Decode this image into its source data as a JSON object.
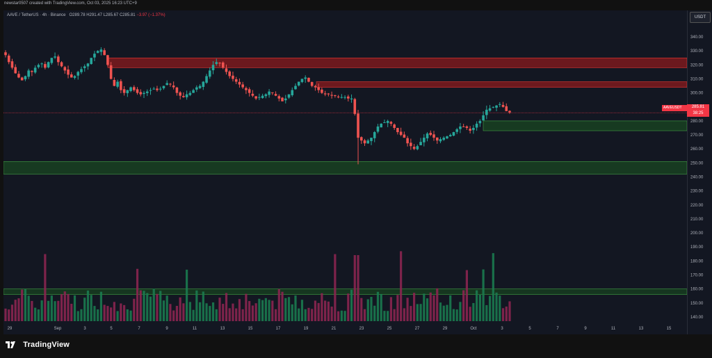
{
  "header": {
    "credit": "newstar0507 created with TradingView.com, Oct 03, 2025 16:23 UTC+9",
    "symbol_line": "AAVE / TetherUS · 4h · Binance",
    "ohlc": {
      "open": "O289.78",
      "high": "H291.47",
      "low": "L285.67",
      "close": "C285.81",
      "change": "−3.97 (−1.37%)"
    }
  },
  "axis": {
    "currency_button": "USDT",
    "price_ticks": [
      "340.00",
      "330.00",
      "320.00",
      "310.00",
      "300.00",
      "290.00",
      "280.00",
      "270.00",
      "260.00",
      "250.00",
      "240.00",
      "230.00",
      "220.00",
      "210.00",
      "200.00",
      "190.00",
      "180.00",
      "170.00",
      "160.00",
      "150.00",
      "140.00"
    ],
    "date_ticks": [
      "29",
      "Sep",
      "3",
      "5",
      "7",
      "9",
      "11",
      "13",
      "15",
      "17",
      "19",
      "21",
      "23",
      "25",
      "27",
      "29",
      "Oct",
      "3",
      "5",
      "7",
      "9",
      "11",
      "13",
      "15"
    ]
  },
  "price_tag": {
    "symbol": "AAVEUSDT",
    "price": "285.81",
    "countdown": "38:25"
  },
  "footer": {
    "brand": "TradingView"
  },
  "colors": {
    "up": "#26a69a",
    "down": "#ef5350",
    "resistance": "#b71c1c",
    "support": "#1b5e20",
    "bg": "#131722"
  },
  "chart_data": {
    "type": "candlestick",
    "title": "AAVE / TetherUS · 4h · Binance",
    "ylim": [
      137,
      345
    ],
    "grid": false,
    "date_range": [
      "Aug 29",
      "Oct 3"
    ],
    "closes": [
      327,
      322,
      318,
      314,
      311,
      309,
      312,
      316,
      315,
      318,
      320,
      321,
      318,
      322,
      325,
      326,
      322,
      319,
      316,
      313,
      311,
      312,
      315,
      317,
      319,
      321,
      325,
      328,
      330,
      331,
      327,
      320,
      310,
      305,
      308,
      302,
      300,
      302,
      304,
      302,
      300,
      299,
      300,
      301,
      302,
      303,
      302,
      303,
      305,
      307,
      306,
      304,
      300,
      298,
      297,
      299,
      300,
      302,
      304,
      305,
      308,
      312,
      316,
      320,
      322,
      321,
      318,
      315,
      312,
      310,
      308,
      306,
      304,
      302,
      300,
      298,
      296,
      297,
      298,
      299,
      301,
      300,
      298,
      296,
      294,
      296,
      299,
      302,
      305,
      308,
      310,
      311,
      308,
      305,
      304,
      302,
      300,
      299,
      299,
      298,
      298,
      297,
      297,
      297,
      296,
      296,
      285,
      268,
      266,
      264,
      266,
      268,
      272,
      276,
      278,
      279,
      280,
      278,
      275,
      272,
      270,
      268,
      264,
      262,
      260,
      262,
      265,
      268,
      271,
      270,
      268,
      266,
      267,
      268,
      269,
      270,
      272,
      274,
      276,
      276,
      275,
      273,
      275,
      278,
      280,
      284,
      288,
      289,
      290,
      291,
      292,
      290,
      287,
      286
    ],
    "resistance_zones": [
      [
        318,
        325
      ],
      [
        304,
        308
      ]
    ],
    "support_zones": [
      [
        242,
        251
      ],
      [
        273,
        280
      ]
    ],
    "volume_zone": [
      156,
      160
    ],
    "current_price": 285.81
  }
}
